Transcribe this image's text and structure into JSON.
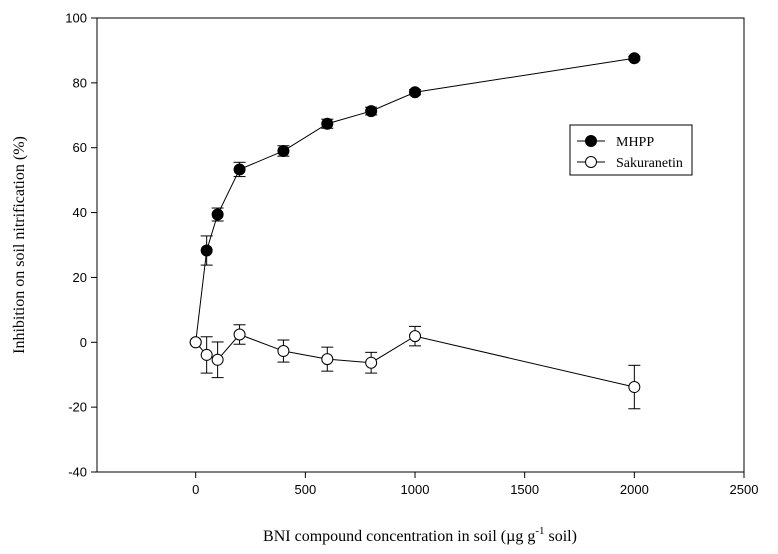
{
  "chart_data": {
    "type": "scatter",
    "xlabel": "BNI compound concentration in soil (µg g",
    "xlabel_superscript": "-1",
    "xlabel_suffix": " soil)",
    "ylabel": "Inhibition on soil nitrification (%)",
    "xlim": [
      -450,
      2500
    ],
    "ylim": [
      -40,
      100
    ],
    "x_ticks": [
      0,
      500,
      1000,
      1500,
      2000,
      2500
    ],
    "y_ticks": [
      -40,
      -20,
      0,
      20,
      40,
      60,
      80,
      100
    ],
    "grid": false,
    "legend_position": "top-right",
    "series": [
      {
        "name": "MHPP",
        "marker": "filled-circle",
        "x": [
          0,
          50,
          100,
          200,
          400,
          600,
          800,
          1000,
          2000
        ],
        "y": [
          0,
          28.3,
          39.4,
          53.3,
          59.0,
          67.4,
          71.3,
          77.1,
          87.6
        ],
        "err": [
          0,
          4.5,
          2.0,
          2.2,
          1.6,
          1.4,
          1.2,
          0.8,
          0.6
        ]
      },
      {
        "name": "Sakuranetin",
        "marker": "open-circle",
        "x": [
          0,
          50,
          100,
          200,
          400,
          600,
          800,
          1000,
          2000
        ],
        "y": [
          0,
          -3.9,
          -5.4,
          2.4,
          -2.7,
          -5.2,
          -6.3,
          1.9,
          -13.8
        ],
        "err": [
          0,
          5.6,
          5.5,
          3.0,
          3.4,
          3.7,
          3.2,
          3.0,
          6.7
        ]
      }
    ]
  },
  "colors": {
    "axis": "#000000",
    "marker_fill": "#000000",
    "open_marker_fill": "#ffffff"
  }
}
